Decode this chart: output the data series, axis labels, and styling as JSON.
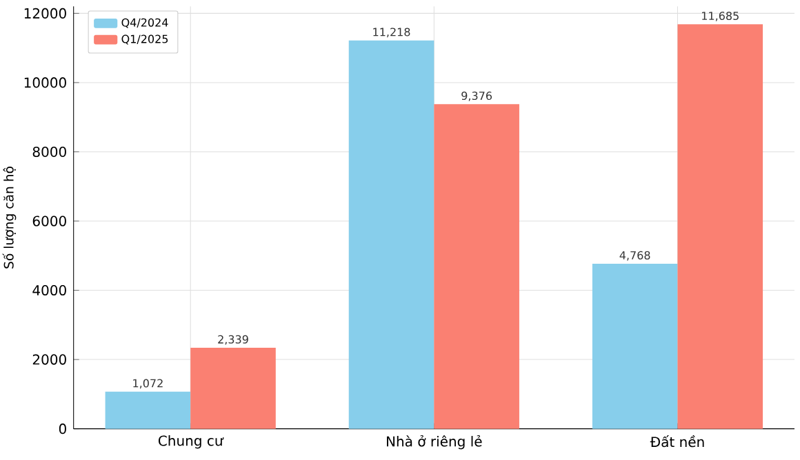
{
  "chart_data": {
    "type": "bar",
    "ylabel": "Số lượng căn hộ",
    "categories": [
      "Chung cư",
      "Nhà ở riêng lẻ",
      "Đất nền"
    ],
    "series": [
      {
        "name": "Q4/2024",
        "color": "#87ceeb",
        "values": [
          1072,
          11218,
          4768
        ],
        "value_labels": [
          "1,072",
          "11,218",
          "4,768"
        ]
      },
      {
        "name": "Q1/2025",
        "color": "#fa8072",
        "values": [
          2339,
          9376,
          11685
        ],
        "value_labels": [
          "2,339",
          "9,376",
          "11,685"
        ]
      }
    ],
    "ylim": [
      0,
      12200
    ],
    "yticks": [
      0,
      2000,
      4000,
      6000,
      8000,
      10000,
      12000
    ],
    "grid": true,
    "legend": "top left"
  }
}
